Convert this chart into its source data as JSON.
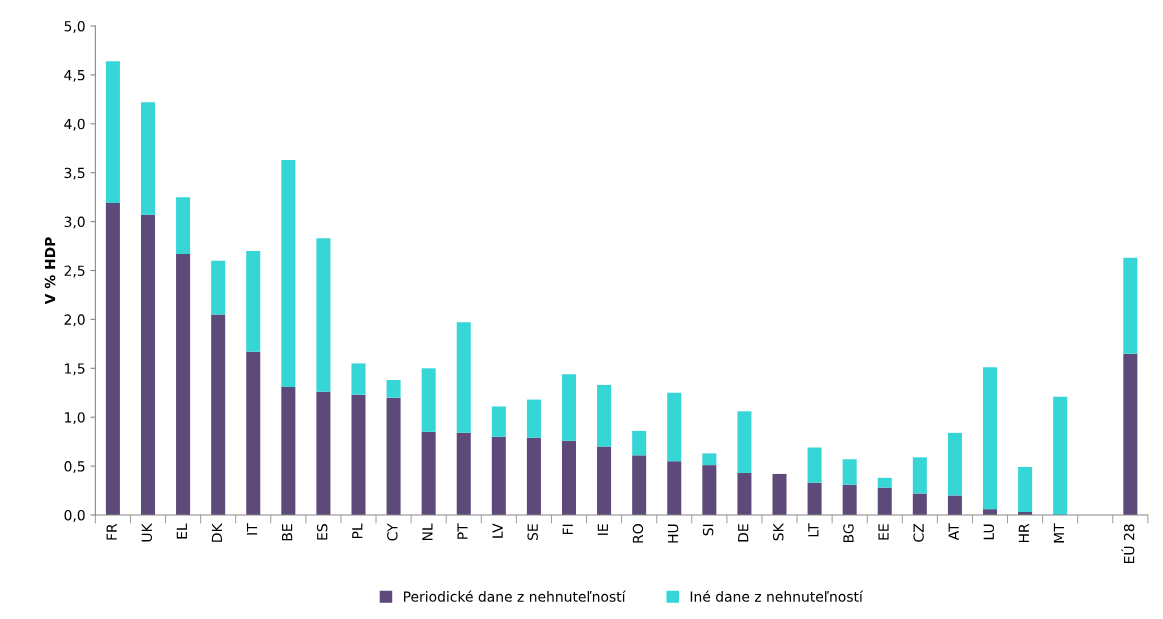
{
  "chart_data": {
    "type": "bar",
    "stacked": true,
    "ylabel": "V % HDP",
    "categories": [
      "FR",
      "UK",
      "EL",
      "DK",
      "IT",
      "BE",
      "ES",
      "PL",
      "CY",
      "NL",
      "PT",
      "LV",
      "SE",
      "FI",
      "IE",
      "RO",
      "HU",
      "SI",
      "DE",
      "SK",
      "LT",
      "BG",
      "EE",
      "CZ",
      "AT",
      "LU",
      "HR",
      "MT",
      null,
      "EÚ 28"
    ],
    "series": [
      {
        "name": "Periodické dane z nehnuteľností",
        "color": "#5e4a7a",
        "values": [
          3.19,
          3.07,
          2.67,
          2.05,
          1.67,
          1.31,
          1.26,
          1.23,
          1.2,
          0.85,
          0.84,
          0.8,
          0.79,
          0.76,
          0.7,
          0.61,
          0.55,
          0.51,
          0.43,
          0.42,
          0.33,
          0.31,
          0.28,
          0.22,
          0.2,
          0.06,
          0.03,
          0,
          null,
          1.65
        ]
      },
      {
        "name": "Iné dane z nehnuteľností",
        "color": "#36d5d6",
        "values": [
          1.45,
          1.15,
          0.58,
          0.55,
          1.03,
          2.32,
          1.57,
          0.32,
          0.18,
          0.65,
          1.13,
          0.31,
          0.39,
          0.68,
          0.63,
          0.25,
          0.7,
          0.12,
          0.63,
          0,
          0.36,
          0.26,
          0.1,
          0.37,
          0.64,
          1.45,
          0.46,
          1.21,
          null,
          0.98
        ]
      }
    ],
    "ylim": [
      0,
      5
    ],
    "yticks": [
      {
        "value": 0,
        "label": "0,0"
      },
      {
        "value": 0.5,
        "label": "0,5"
      },
      {
        "value": 1,
        "label": "1,0"
      },
      {
        "value": 1.5,
        "label": "1,5"
      },
      {
        "value": 2,
        "label": "2,0"
      },
      {
        "value": 2.5,
        "label": "2,5"
      },
      {
        "value": 3,
        "label": "3,0"
      },
      {
        "value": 3.5,
        "label": "3,5"
      },
      {
        "value": 4,
        "label": "4,0"
      },
      {
        "value": 4.5,
        "label": "4,5"
      },
      {
        "value": 5,
        "label": "5,0"
      }
    ],
    "grid": false,
    "legend": "bottom"
  }
}
